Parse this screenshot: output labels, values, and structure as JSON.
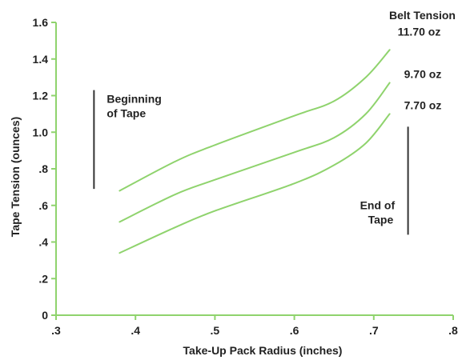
{
  "chart_data": {
    "type": "line",
    "xlabel": "Take-Up Pack Radius (inches)",
    "ylabel": "Tape Tension (ounces)",
    "xlim": [
      0.3,
      0.8
    ],
    "ylim": [
      0,
      1.6
    ],
    "x_ticks": [
      {
        "value": 0.3,
        "label": ".3"
      },
      {
        "value": 0.4,
        "label": ".4"
      },
      {
        "value": 0.5,
        "label": ".5"
      },
      {
        "value": 0.6,
        "label": ".6"
      },
      {
        "value": 0.7,
        "label": ".7"
      },
      {
        "value": 0.8,
        "label": ".8"
      }
    ],
    "y_ticks": [
      {
        "value": 0.0,
        "label": "0"
      },
      {
        "value": 0.2,
        "label": ".2"
      },
      {
        "value": 0.4,
        "label": ".4"
      },
      {
        "value": 0.6,
        "label": ".6"
      },
      {
        "value": 0.8,
        "label": ".8"
      },
      {
        "value": 1.0,
        "label": "1.0"
      },
      {
        "value": 1.2,
        "label": "1.2"
      },
      {
        "value": 1.4,
        "label": "1.4"
      },
      {
        "value": 1.6,
        "label": "1.6"
      }
    ],
    "series": [
      {
        "name": "11.70 oz",
        "x": [
          0.38,
          0.45,
          0.5,
          0.6,
          0.65,
          0.69,
          0.72
        ],
        "y": [
          0.68,
          0.84,
          0.93,
          1.09,
          1.17,
          1.3,
          1.45
        ]
      },
      {
        "name": "9.70 oz",
        "x": [
          0.38,
          0.45,
          0.5,
          0.6,
          0.65,
          0.69,
          0.72
        ],
        "y": [
          0.51,
          0.66,
          0.74,
          0.89,
          0.97,
          1.1,
          1.27
        ]
      },
      {
        "name": "7.70 oz",
        "x": [
          0.38,
          0.45,
          0.5,
          0.6,
          0.65,
          0.69,
          0.72
        ],
        "y": [
          0.34,
          0.48,
          0.57,
          0.72,
          0.82,
          0.94,
          1.1
        ]
      }
    ],
    "legend_title": "Belt Tension",
    "annotations": {
      "beginning": {
        "line1": "Beginning",
        "line2": "of Tape",
        "x": 0.38,
        "y_from": 0.69,
        "y_to": 1.23
      },
      "end": {
        "line1": "End of",
        "line2": "Tape",
        "x": 0.725,
        "y_from": 0.44,
        "y_to": 1.03
      }
    },
    "colors": {
      "axis": "#8fd36d",
      "series": "#8fd36d",
      "text": "#222222",
      "marker": "#333333"
    },
    "grid": false
  }
}
